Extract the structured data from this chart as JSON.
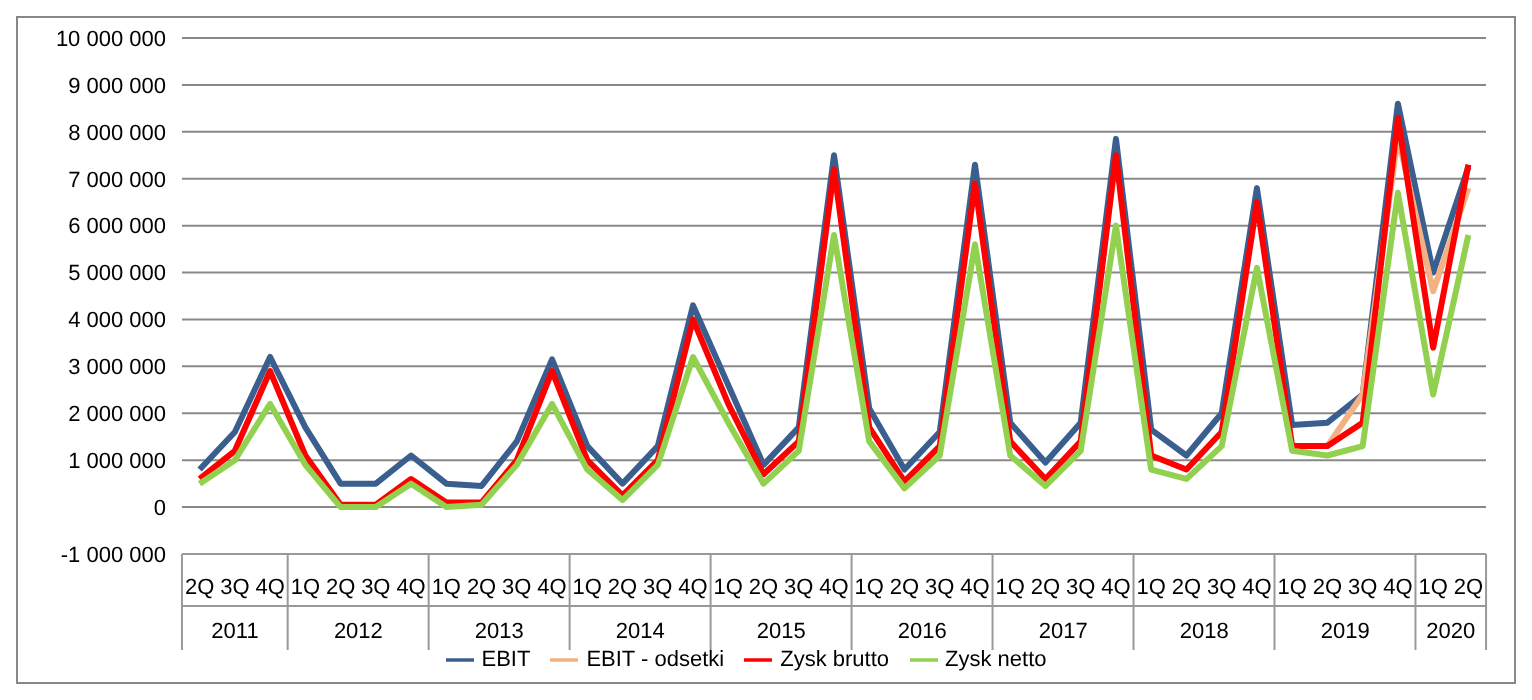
{
  "chart_data": {
    "type": "line",
    "categories": [
      "2Q",
      "3Q",
      "4Q",
      "1Q",
      "2Q",
      "3Q",
      "4Q",
      "1Q",
      "2Q",
      "3Q",
      "4Q",
      "1Q",
      "2Q",
      "3Q",
      "4Q",
      "1Q",
      "2Q",
      "3Q",
      "4Q",
      "1Q",
      "2Q",
      "3Q",
      "4Q",
      "1Q",
      "2Q",
      "3Q",
      "4Q",
      "1Q",
      "2Q",
      "3Q",
      "4Q",
      "1Q",
      "2Q",
      "3Q",
      "4Q",
      "1Q",
      "2Q"
    ],
    "annotations": [
      "2011",
      "2012",
      "2013",
      "2014",
      "2015",
      "2016",
      "2017",
      "2018",
      "2019",
      "2020"
    ],
    "series": [
      {
        "name": "EBIT",
        "color": "#3a5f8f",
        "values": [
          800000,
          1600000,
          3200000,
          1700000,
          500000,
          500000,
          1100000,
          500000,
          450000,
          1400000,
          3150000,
          1300000,
          500000,
          1300000,
          4300000,
          2600000,
          900000,
          1700000,
          7500000,
          2100000,
          800000,
          1600000,
          7300000,
          1800000,
          950000,
          1800000,
          7850000,
          1650000,
          1100000,
          2000000,
          6800000,
          1750000,
          1800000,
          2400000,
          8600000,
          5000000,
          7250000
        ]
      },
      {
        "name": "EBIT - odsetki",
        "color": "#f4b183",
        "values": [
          null,
          null,
          null,
          null,
          null,
          null,
          null,
          null,
          null,
          null,
          null,
          null,
          null,
          null,
          null,
          null,
          null,
          null,
          null,
          null,
          null,
          null,
          null,
          null,
          null,
          null,
          null,
          null,
          null,
          null,
          null,
          1300000,
          1300000,
          2400000,
          7900000,
          4600000,
          6800000
        ]
      },
      {
        "name": "Zysk brutto",
        "color": "#ff0000",
        "values": [
          600000,
          1200000,
          2900000,
          1100000,
          50000,
          50000,
          600000,
          100000,
          100000,
          1000000,
          2900000,
          1000000,
          250000,
          1000000,
          4000000,
          2200000,
          700000,
          1400000,
          7200000,
          1700000,
          550000,
          1300000,
          6900000,
          1400000,
          600000,
          1400000,
          7500000,
          1100000,
          800000,
          1600000,
          6500000,
          1300000,
          1300000,
          1800000,
          8300000,
          3400000,
          7300000
        ]
      },
      {
        "name": "Zysk netto",
        "color": "#92d050",
        "values": [
          500000,
          1000000,
          2200000,
          900000,
          0,
          0,
          500000,
          0,
          50000,
          900000,
          2200000,
          800000,
          150000,
          900000,
          3200000,
          1800000,
          500000,
          1200000,
          5800000,
          1400000,
          400000,
          1100000,
          5600000,
          1100000,
          450000,
          1200000,
          6000000,
          800000,
          600000,
          1300000,
          5100000,
          1200000,
          1100000,
          1300000,
          6700000,
          2400000,
          5800000
        ]
      }
    ],
    "ylim": [
      -1000000,
      10000000
    ],
    "yticks": [
      {
        "value": -1000000,
        "label": "-1 000 000"
      },
      {
        "value": 0,
        "label": "0"
      },
      {
        "value": 1000000,
        "label": "1 000 000"
      },
      {
        "value": 2000000,
        "label": "2 000 000"
      },
      {
        "value": 3000000,
        "label": "3 000 000"
      },
      {
        "value": 4000000,
        "label": "4 000 000"
      },
      {
        "value": 5000000,
        "label": "5 000 000"
      },
      {
        "value": 6000000,
        "label": "6 000 000"
      },
      {
        "value": 7000000,
        "label": "7 000 000"
      },
      {
        "value": 8000000,
        "label": "8 000 000"
      },
      {
        "value": 9000000,
        "label": "9 000 000"
      },
      {
        "value": 10000000,
        "label": "10 000 000"
      }
    ],
    "grid": "y",
    "legend": "bottom",
    "marker": "none",
    "line_style": "solid"
  }
}
